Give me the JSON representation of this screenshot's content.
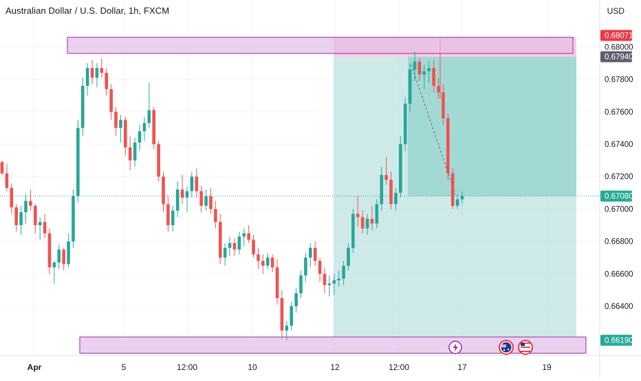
{
  "title": "Australian Dollar / U.S. Dollar, 1h, FXCM",
  "currency": "USD",
  "chart_data": {
    "type": "candlestick",
    "x_tick_labels": [
      "Apr",
      "5",
      "12:00",
      "10",
      "12",
      "12:00",
      "17",
      "19"
    ],
    "y_tick_labels": [
      "0.68000",
      "0.67800",
      "0.67600",
      "0.67400",
      "0.67200",
      "0.67000",
      "0.66800",
      "0.66600",
      "0.66400"
    ],
    "ylim": [
      0.6618,
      0.6815
    ],
    "price_labels": [
      {
        "value": 0.68071,
        "text": "0.68071",
        "bg": "#f23645"
      },
      {
        "value": 0.6794,
        "text": "0.67940",
        "bg": "#5d606b"
      },
      {
        "value": 0.6708,
        "text": "0.67080",
        "bg": "#22ab94"
      },
      {
        "value": 0.6619,
        "text": "0.66190",
        "bg": "#22ab94"
      }
    ],
    "current_price": 0.6708,
    "zones": [
      {
        "top": 0.6806,
        "bottom": 0.6796
      },
      {
        "top": 0.6621,
        "bottom": 0.6611
      }
    ],
    "position": {
      "entry": 0.6794,
      "stop": 0.6806,
      "target": 0.6621
    },
    "candles": [
      [
        0.6729,
        0.673,
        0.6721,
        0.6722
      ],
      [
        0.6722,
        0.6728,
        0.6711,
        0.6713
      ],
      [
        0.6713,
        0.6716,
        0.6697,
        0.6701
      ],
      [
        0.6701,
        0.6703,
        0.6686,
        0.669
      ],
      [
        0.669,
        0.6702,
        0.6684,
        0.6698
      ],
      [
        0.6698,
        0.6709,
        0.6691,
        0.6705
      ],
      [
        0.6705,
        0.6712,
        0.6699,
        0.6702
      ],
      [
        0.6702,
        0.6703,
        0.6685,
        0.669
      ],
      [
        0.669,
        0.6695,
        0.6681,
        0.6692
      ],
      [
        0.6692,
        0.6697,
        0.6682,
        0.6685
      ],
      [
        0.6685,
        0.6688,
        0.666,
        0.6664
      ],
      [
        0.6664,
        0.6668,
        0.6654,
        0.6667
      ],
      [
        0.6667,
        0.6678,
        0.6663,
        0.6675
      ],
      [
        0.6675,
        0.6676,
        0.6662,
        0.6666
      ],
      [
        0.6666,
        0.6685,
        0.6664,
        0.668
      ],
      [
        0.668,
        0.6712,
        0.6676,
        0.6708
      ],
      [
        0.6708,
        0.6755,
        0.6704,
        0.675
      ],
      [
        0.675,
        0.6781,
        0.6745,
        0.6776
      ],
      [
        0.6776,
        0.679,
        0.677,
        0.6787
      ],
      [
        0.6787,
        0.6792,
        0.6777,
        0.6781
      ],
      [
        0.6781,
        0.679,
        0.6775,
        0.6787
      ],
      [
        0.6787,
        0.6793,
        0.6781,
        0.6784
      ],
      [
        0.6784,
        0.6787,
        0.677,
        0.6774
      ],
      [
        0.6774,
        0.6777,
        0.6755,
        0.676
      ],
      [
        0.676,
        0.6763,
        0.6745,
        0.675
      ],
      [
        0.675,
        0.6758,
        0.6741,
        0.6755
      ],
      [
        0.6755,
        0.6757,
        0.6733,
        0.6738
      ],
      [
        0.6738,
        0.6745,
        0.6724,
        0.673
      ],
      [
        0.673,
        0.6744,
        0.6726,
        0.6741
      ],
      [
        0.6741,
        0.6752,
        0.6736,
        0.6748
      ],
      [
        0.6748,
        0.6757,
        0.6742,
        0.6753
      ],
      [
        0.6753,
        0.6778,
        0.675,
        0.6761
      ],
      [
        0.6761,
        0.6763,
        0.6737,
        0.674
      ],
      [
        0.674,
        0.6742,
        0.6717,
        0.672
      ],
      [
        0.672,
        0.6723,
        0.6698,
        0.6703
      ],
      [
        0.6703,
        0.6708,
        0.6686,
        0.669
      ],
      [
        0.669,
        0.6702,
        0.6686,
        0.6699
      ],
      [
        0.6699,
        0.6717,
        0.6695,
        0.6712
      ],
      [
        0.6712,
        0.6721,
        0.6703,
        0.6707
      ],
      [
        0.6707,
        0.6714,
        0.6698,
        0.6711
      ],
      [
        0.6711,
        0.6723,
        0.6707,
        0.672
      ],
      [
        0.672,
        0.6725,
        0.6707,
        0.6711
      ],
      [
        0.6711,
        0.6714,
        0.6698,
        0.6702
      ],
      [
        0.6702,
        0.6712,
        0.6699,
        0.6708
      ],
      [
        0.6708,
        0.6713,
        0.6697,
        0.67
      ],
      [
        0.67,
        0.6705,
        0.6688,
        0.6692
      ],
      [
        0.6692,
        0.6697,
        0.6666,
        0.667
      ],
      [
        0.667,
        0.6679,
        0.6665,
        0.6676
      ],
      [
        0.6676,
        0.6683,
        0.6671,
        0.6679
      ],
      [
        0.6679,
        0.6682,
        0.6671,
        0.6675
      ],
      [
        0.6675,
        0.6686,
        0.6672,
        0.6683
      ],
      [
        0.6683,
        0.6688,
        0.6677,
        0.6685
      ],
      [
        0.6685,
        0.669,
        0.6679,
        0.6681
      ],
      [
        0.6681,
        0.6684,
        0.667,
        0.6672
      ],
      [
        0.6672,
        0.6676,
        0.6663,
        0.6668
      ],
      [
        0.6668,
        0.6672,
        0.666,
        0.6665
      ],
      [
        0.6665,
        0.6673,
        0.6663,
        0.667
      ],
      [
        0.667,
        0.6672,
        0.6661,
        0.6664
      ],
      [
        0.6664,
        0.6669,
        0.6641,
        0.6645
      ],
      [
        0.6645,
        0.665,
        0.662,
        0.6625
      ],
      [
        0.6625,
        0.6631,
        0.6619,
        0.6628
      ],
      [
        0.6628,
        0.6643,
        0.6625,
        0.664
      ],
      [
        0.664,
        0.6651,
        0.6636,
        0.6648
      ],
      [
        0.6648,
        0.6662,
        0.6645,
        0.6659
      ],
      [
        0.6659,
        0.6673,
        0.6655,
        0.667
      ],
      [
        0.667,
        0.6679,
        0.6664,
        0.6676
      ],
      [
        0.6676,
        0.668,
        0.6665,
        0.6668
      ],
      [
        0.6668,
        0.667,
        0.6655,
        0.666
      ],
      [
        0.666,
        0.6664,
        0.6648,
        0.6653
      ],
      [
        0.6653,
        0.6659,
        0.6646,
        0.6654
      ],
      [
        0.6654,
        0.666,
        0.6647,
        0.6656
      ],
      [
        0.6656,
        0.6662,
        0.6652,
        0.6657
      ],
      [
        0.6657,
        0.6668,
        0.6653,
        0.6665
      ],
      [
        0.6665,
        0.6679,
        0.6662,
        0.6676
      ],
      [
        0.6676,
        0.67,
        0.6673,
        0.6697
      ],
      [
        0.6697,
        0.6708,
        0.6689,
        0.6695
      ],
      [
        0.6695,
        0.6699,
        0.6685,
        0.6688
      ],
      [
        0.6688,
        0.6697,
        0.6684,
        0.6694
      ],
      [
        0.6694,
        0.6702,
        0.6687,
        0.6691
      ],
      [
        0.6691,
        0.6706,
        0.6688,
        0.6703
      ],
      [
        0.6703,
        0.6726,
        0.6699,
        0.6721
      ],
      [
        0.6721,
        0.6732,
        0.6715,
        0.6718
      ],
      [
        0.6718,
        0.6723,
        0.67,
        0.6703
      ],
      [
        0.6703,
        0.6713,
        0.6699,
        0.671
      ],
      [
        0.671,
        0.6745,
        0.6707,
        0.674
      ],
      [
        0.674,
        0.6769,
        0.6736,
        0.6765
      ],
      [
        0.6765,
        0.679,
        0.676,
        0.6786
      ],
      [
        0.6786,
        0.6797,
        0.6779,
        0.6791
      ],
      [
        0.6791,
        0.6793,
        0.6779,
        0.6783
      ],
      [
        0.6783,
        0.6789,
        0.6774,
        0.6785
      ],
      [
        0.6785,
        0.6791,
        0.6778,
        0.6787
      ],
      [
        0.6787,
        0.6792,
        0.6772,
        0.6776
      ],
      [
        0.6776,
        0.6781,
        0.6768,
        0.6772
      ],
      [
        0.6772,
        0.6777,
        0.6752,
        0.6756
      ],
      [
        0.6756,
        0.6759,
        0.6718,
        0.6722
      ],
      [
        0.6722,
        0.6725,
        0.67,
        0.6702
      ],
      [
        0.6702,
        0.6709,
        0.67,
        0.6706
      ],
      [
        0.6706,
        0.6711,
        0.6703,
        0.6708
      ]
    ]
  },
  "markers": [
    {
      "icon": "lightning-icon",
      "glyph": "⚡",
      "color": "#9c27b0"
    },
    {
      "icon": "australia-flag-icon",
      "color": "#f23645"
    },
    {
      "icon": "us-flag-icon",
      "color": "#f23645"
    }
  ],
  "colors": {
    "up": "#26a69a",
    "down": "#ef5350",
    "zone_fill": "#e1bee7",
    "zone_border": "#9c27b0",
    "target_fill": "#b2dfdb",
    "stop_fill": "#f8bbd0",
    "grid": "#f0f3fa",
    "axis_text": "#131722"
  }
}
